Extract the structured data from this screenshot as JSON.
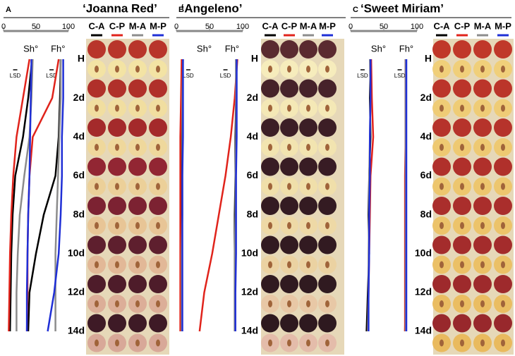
{
  "chart_data": [
    {
      "type": "line",
      "panel_label": "A",
      "title": "‘Joanna Red’",
      "xlim": [
        0,
        100
      ],
      "xticks": [
        0,
        50,
        100
      ],
      "axis_labels": [
        "Sh°",
        "Fh°"
      ],
      "lsd_label": "LSD",
      "categories": [
        "H",
        "2d",
        "4d",
        "6d",
        "8d",
        "10d",
        "12d",
        "14d"
      ],
      "series": [
        {
          "name": "C-A",
          "color": "#000000",
          "sh": [
            44,
            38,
            30,
            18,
            14,
            12,
            11,
            10
          ],
          "fh": [
            88,
            87,
            85,
            80,
            62,
            50,
            40,
            38
          ]
        },
        {
          "name": "C-P",
          "color": "#e0231b",
          "sh": [
            40,
            30,
            20,
            15,
            12,
            10,
            9,
            8
          ],
          "fh": [
            85,
            75,
            45,
            40,
            38,
            37,
            37,
            36
          ]
        },
        {
          "name": "M-A",
          "color": "#8c8c8c",
          "sh": [
            45,
            43,
            40,
            32,
            25,
            22,
            20,
            20
          ],
          "fh": [
            88,
            88,
            86,
            84,
            82,
            80,
            80,
            80
          ]
        },
        {
          "name": "M-P",
          "color": "#1f2fd6",
          "sh": [
            43,
            42,
            41,
            40,
            38,
            37,
            36,
            36
          ],
          "fh": [
            92,
            92,
            90,
            90,
            88,
            85,
            78,
            68
          ]
        }
      ]
    },
    {
      "type": "line",
      "panel_label": "B",
      "title": "‘Angeleno’",
      "xlim": [
        0,
        100
      ],
      "xticks": [
        0,
        50,
        100
      ],
      "axis_labels": [
        "Sh°",
        "Fh°"
      ],
      "lsd_label": "LSD",
      "categories": [
        "H",
        "2d",
        "4d",
        "6d",
        "8d",
        "10d",
        "12d",
        "14d"
      ],
      "series": [
        {
          "name": "C-A",
          "color": "#000000",
          "sh": [
            9,
            8,
            8,
            8,
            8,
            8,
            8,
            8
          ],
          "fh": [
            90,
            90,
            89,
            89,
            88,
            88,
            88,
            88
          ]
        },
        {
          "name": "C-P",
          "color": "#e0231b",
          "sh": [
            8,
            7,
            6,
            6,
            6,
            6,
            6,
            6
          ],
          "fh": [
            92,
            88,
            82,
            74,
            64,
            54,
            42,
            35
          ]
        },
        {
          "name": "M-A",
          "color": "#8c8c8c",
          "sh": [
            10,
            9,
            9,
            9,
            9,
            8,
            8,
            8
          ],
          "fh": [
            90,
            90,
            90,
            89,
            89,
            88,
            88,
            88
          ]
        },
        {
          "name": "M-P",
          "color": "#1f2fd6",
          "sh": [
            10,
            10,
            10,
            9,
            9,
            9,
            9,
            9
          ],
          "fh": [
            91,
            91,
            91,
            90,
            90,
            90,
            89,
            89
          ]
        }
      ]
    },
    {
      "type": "line",
      "panel_label": "C",
      "title": "‘Sweet Miriam’",
      "xlim": [
        0,
        100
      ],
      "xticks": [
        0,
        50,
        100
      ],
      "axis_labels": [
        "Sh°",
        "Fh°"
      ],
      "lsd_label": "LSD",
      "categories": [
        "H",
        "2d",
        "4d",
        "6d",
        "8d",
        "10d",
        "12d",
        "14d"
      ],
      "series": [
        {
          "name": "C-A",
          "color": "#000000",
          "sh": [
            30,
            29,
            30,
            28,
            27,
            28,
            26,
            24
          ],
          "fh": [
            83,
            83,
            83,
            83,
            83,
            83,
            83,
            82
          ]
        },
        {
          "name": "C-P",
          "color": "#e0231b",
          "sh": [
            31,
            32,
            34,
            30,
            29,
            28,
            27,
            26
          ],
          "fh": [
            83,
            83,
            83,
            82,
            82,
            82,
            82,
            82
          ]
        },
        {
          "name": "M-A",
          "color": "#8c8c8c",
          "sh": [
            29,
            30,
            29,
            28,
            28,
            27,
            27,
            26
          ],
          "fh": [
            83,
            83,
            83,
            83,
            83,
            83,
            83,
            83
          ]
        },
        {
          "name": "M-P",
          "color": "#1f2fd6",
          "sh": [
            30,
            30,
            29,
            29,
            28,
            28,
            27,
            27
          ],
          "fh": [
            84,
            84,
            84,
            84,
            84,
            84,
            84,
            84
          ]
        }
      ]
    }
  ]
}
